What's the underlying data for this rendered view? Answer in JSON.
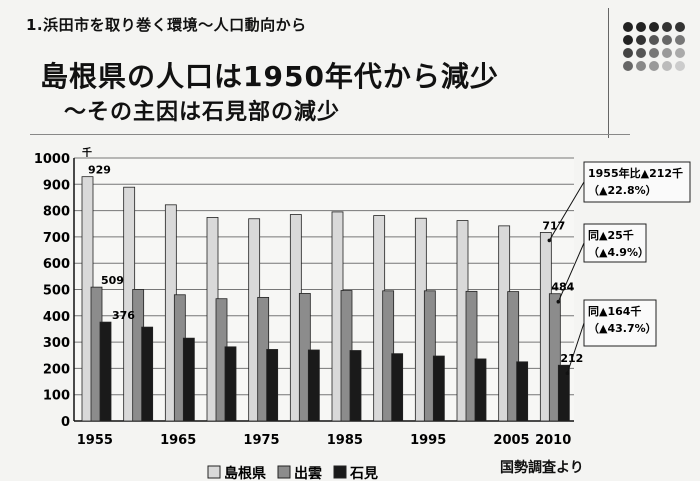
{
  "header": {
    "section_title": "1.浜田市を取り巻く環境～人口動向から",
    "main_title": "島根県の人口は1950年代から減少",
    "sub_title": "～その主因は石見部の減少"
  },
  "source_note": "国勢調査より",
  "chart_data": {
    "type": "bar",
    "title": "",
    "unit_label": "千",
    "ylim": [
      0,
      1000
    ],
    "yticks": [
      0,
      100,
      200,
      300,
      400,
      500,
      600,
      700,
      800,
      900,
      1000
    ],
    "x": [
      1955,
      1960,
      1965,
      1970,
      1975,
      1980,
      1985,
      1990,
      1995,
      2000,
      2005,
      2010
    ],
    "x_tick_labels": [
      "1955",
      "1965",
      "1975",
      "1985",
      "1995",
      "2005",
      "2010"
    ],
    "x_tick_years": [
      1955,
      1965,
      1975,
      1985,
      1995,
      2005,
      2010
    ],
    "series": [
      {
        "name": "島根県",
        "color": "#d9d9d9",
        "values": [
          929,
          889,
          822,
          774,
          769,
          785,
          795,
          781,
          771,
          762,
          742,
          717
        ]
      },
      {
        "name": "出雲",
        "color": "#8c8c8c",
        "values": [
          509,
          500,
          480,
          465,
          470,
          485,
          496,
          495,
          495,
          493,
          492,
          484
        ]
      },
      {
        "name": "石見",
        "color": "#1a1a1a",
        "values": [
          376,
          357,
          315,
          282,
          272,
          270,
          268,
          256,
          247,
          236,
          225,
          212
        ]
      }
    ],
    "data_labels": [
      {
        "text": "929",
        "series": 0,
        "index": 0
      },
      {
        "text": "509",
        "series": 1,
        "index": 0
      },
      {
        "text": "376",
        "series": 2,
        "index": 0
      },
      {
        "text": "717",
        "series": 0,
        "index": 11
      },
      {
        "text": "484",
        "series": 1,
        "index": 11
      },
      {
        "text": "212",
        "series": 2,
        "index": 11
      }
    ],
    "annotations": [
      {
        "line1": "1955年比▲212千",
        "line2": "（▲22.8%）"
      },
      {
        "line1": "同▲25千",
        "line2": "（▲4.9%）"
      },
      {
        "line1": "同▲164千",
        "line2": "（▲43.7%）"
      }
    ],
    "legend": {
      "position": "bottom"
    },
    "grid": true
  }
}
